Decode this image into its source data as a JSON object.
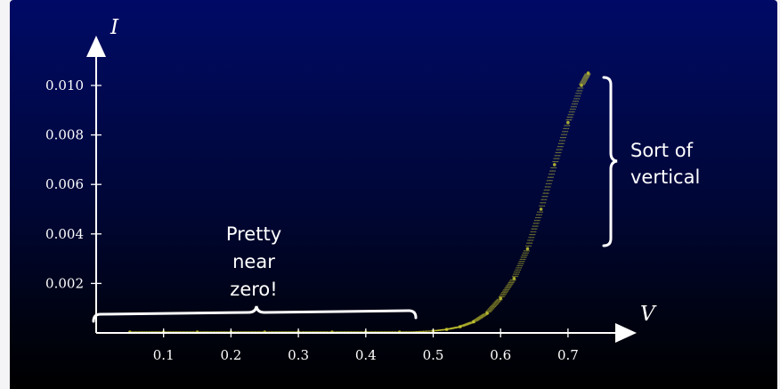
{
  "chart_data": {
    "type": "scatter",
    "xlabel": "V",
    "ylabel": "I",
    "xlim": [
      0,
      0.8
    ],
    "ylim": [
      0,
      0.0105
    ],
    "x_ticks": [
      "0.1",
      "0.2",
      "0.3",
      "0.4",
      "0.5",
      "0.6",
      "0.7"
    ],
    "y_ticks": [
      "0.002",
      "0.004",
      "0.006",
      "0.008",
      "0.010"
    ],
    "series": [
      {
        "color": "#c8c832",
        "x": [
          0.05,
          0.1,
          0.15,
          0.2,
          0.25,
          0.3,
          0.35,
          0.4,
          0.45,
          0.5,
          0.52,
          0.54,
          0.56,
          0.58,
          0.6,
          0.62,
          0.64,
          0.66,
          0.68,
          0.7,
          0.72,
          0.73
        ],
        "y": [
          0.0,
          0.0,
          0.0,
          0.0,
          0.0,
          0.0,
          0.0,
          0.0,
          1e-05,
          8e-05,
          0.00014,
          0.00025,
          0.00045,
          0.0008,
          0.0014,
          0.0022,
          0.0034,
          0.005,
          0.0068,
          0.0085,
          0.01,
          0.0105
        ]
      }
    ],
    "annotations": [
      {
        "lines": [
          "Pretty",
          "near",
          "zero!"
        ]
      },
      {
        "lines": [
          "Sort of",
          "vertical"
        ]
      }
    ]
  }
}
